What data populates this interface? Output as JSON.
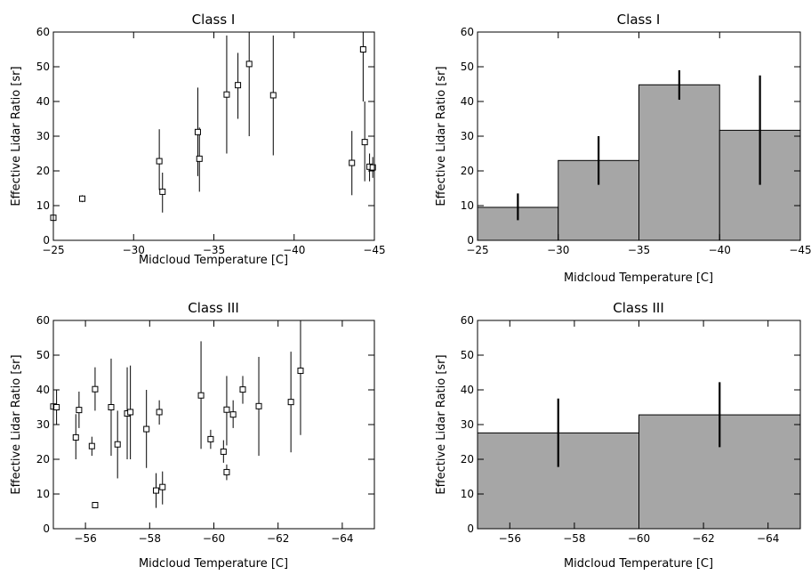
{
  "chart_data": [
    {
      "type": "scatter",
      "title": "Class I",
      "xlabel": "Midcloud Temperature [C]",
      "ylabel": "Effective Lidar Ratio [sr]",
      "xlim": [
        -25,
        -45
      ],
      "ylim": [
        0,
        60
      ],
      "xticks": [
        -25,
        -30,
        -35,
        -40,
        -45
      ],
      "yticks": [
        0,
        10,
        20,
        30,
        40,
        50,
        60
      ],
      "grid": false,
      "marker": "open-square",
      "points": [
        {
          "x": -25.0,
          "y": 6.5,
          "ylo": 5.5,
          "yhi": 7.5
        },
        {
          "x": -26.8,
          "y": 12.0,
          "ylo": 11.0,
          "yhi": 13.0
        },
        {
          "x": -31.6,
          "y": 22.8,
          "ylo": 14.5,
          "yhi": 32.0
        },
        {
          "x": -31.8,
          "y": 14.0,
          "ylo": 8.0,
          "yhi": 19.5
        },
        {
          "x": -34.0,
          "y": 31.2,
          "ylo": 18.5,
          "yhi": 44.0
        },
        {
          "x": -34.1,
          "y": 23.5,
          "ylo": 14.0,
          "yhi": 32.5
        },
        {
          "x": -35.8,
          "y": 42.0,
          "ylo": 25.0,
          "yhi": 59.0
        },
        {
          "x": -36.5,
          "y": 44.7,
          "ylo": 35.0,
          "yhi": 54.0
        },
        {
          "x": -37.2,
          "y": 50.8,
          "ylo": 30.0,
          "yhi": 60.0
        },
        {
          "x": -38.7,
          "y": 41.8,
          "ylo": 24.5,
          "yhi": 59.0
        },
        {
          "x": -43.6,
          "y": 22.3,
          "ylo": 13.0,
          "yhi": 31.5
        },
        {
          "x": -44.3,
          "y": 55.0,
          "ylo": 40.0,
          "yhi": 60.0
        },
        {
          "x": -44.4,
          "y": 28.3,
          "ylo": 17.0,
          "yhi": 40.0
        },
        {
          "x": -44.7,
          "y": 21.2,
          "ylo": 17.0,
          "yhi": 25.0
        },
        {
          "x": -44.9,
          "y": 21.0,
          "ylo": 18.0,
          "yhi": 24.0
        }
      ]
    },
    {
      "type": "bar",
      "title": "Class I",
      "xlabel": "Midcloud Temperature [C]",
      "ylabel": "Effective Lidar Ratio [sr]",
      "xlim": [
        -25,
        -45
      ],
      "ylim": [
        0,
        60
      ],
      "xticks": [
        -25,
        -30,
        -35,
        -40,
        -45
      ],
      "yticks": [
        0,
        10,
        20,
        30,
        40,
        50,
        60
      ],
      "grid": false,
      "bar_color": "#a6a6a6",
      "bars": [
        {
          "x0": -25,
          "x1": -30,
          "value": 9.5,
          "err_center": -27.5,
          "ylo": 5.8,
          "yhi": 13.5
        },
        {
          "x0": -30,
          "x1": -35,
          "value": 23.0,
          "err_center": -32.5,
          "ylo": 16.0,
          "yhi": 30.0
        },
        {
          "x0": -35,
          "x1": -40,
          "value": 44.8,
          "err_center": -37.5,
          "ylo": 40.5,
          "yhi": 49.0
        },
        {
          "x0": -40,
          "x1": -45,
          "value": 31.7,
          "err_center": -42.5,
          "ylo": 16.0,
          "yhi": 47.5
        }
      ]
    },
    {
      "type": "scatter",
      "title": "Class III",
      "xlabel": "Midcloud Temperature [C]",
      "ylabel": "Effective Lidar Ratio [sr]",
      "xlim": [
        -55,
        -65
      ],
      "ylim": [
        0,
        60
      ],
      "xticks": [
        -56,
        -58,
        -60,
        -62,
        -64
      ],
      "yticks": [
        0,
        10,
        20,
        30,
        40,
        50,
        60
      ],
      "grid": false,
      "marker": "open-square",
      "points": [
        {
          "x": -55.0,
          "y": 35.2,
          "ylo": 28.0,
          "yhi": 42.0
        },
        {
          "x": -55.1,
          "y": 35.0,
          "ylo": 30.0,
          "yhi": 40.0
        },
        {
          "x": -55.7,
          "y": 26.3,
          "ylo": 20.0,
          "yhi": 33.0
        },
        {
          "x": -55.8,
          "y": 34.2,
          "ylo": 29.0,
          "yhi": 39.5
        },
        {
          "x": -56.2,
          "y": 23.8,
          "ylo": 21.0,
          "yhi": 26.5
        },
        {
          "x": -56.3,
          "y": 40.2,
          "ylo": 34.0,
          "yhi": 46.5
        },
        {
          "x": -56.3,
          "y": 6.8,
          "ylo": 6.0,
          "yhi": 7.6
        },
        {
          "x": -56.8,
          "y": 35.0,
          "ylo": 21.0,
          "yhi": 49.0
        },
        {
          "x": -57.0,
          "y": 24.3,
          "ylo": 14.5,
          "yhi": 34.0
        },
        {
          "x": -57.3,
          "y": 33.2,
          "ylo": 20.0,
          "yhi": 46.5
        },
        {
          "x": -57.4,
          "y": 33.6,
          "ylo": 20.0,
          "yhi": 47.0
        },
        {
          "x": -57.9,
          "y": 28.7,
          "ylo": 17.5,
          "yhi": 40.0
        },
        {
          "x": -58.2,
          "y": 11.0,
          "ylo": 6.0,
          "yhi": 16.0
        },
        {
          "x": -58.3,
          "y": 33.6,
          "ylo": 30.0,
          "yhi": 37.0
        },
        {
          "x": -58.4,
          "y": 12.0,
          "ylo": 7.0,
          "yhi": 16.5
        },
        {
          "x": -59.6,
          "y": 38.4,
          "ylo": 23.0,
          "yhi": 54.0
        },
        {
          "x": -59.9,
          "y": 25.8,
          "ylo": 23.0,
          "yhi": 28.5
        },
        {
          "x": -60.3,
          "y": 22.2,
          "ylo": 19.0,
          "yhi": 25.5
        },
        {
          "x": -60.4,
          "y": 34.3,
          "ylo": 24.0,
          "yhi": 44.0
        },
        {
          "x": -60.4,
          "y": 16.3,
          "ylo": 14.0,
          "yhi": 18.5
        },
        {
          "x": -60.6,
          "y": 32.9,
          "ylo": 29.0,
          "yhi": 37.0
        },
        {
          "x": -60.9,
          "y": 40.1,
          "ylo": 36.0,
          "yhi": 44.0
        },
        {
          "x": -61.4,
          "y": 35.3,
          "ylo": 21.0,
          "yhi": 49.5
        },
        {
          "x": -62.4,
          "y": 36.5,
          "ylo": 22.0,
          "yhi": 51.0
        },
        {
          "x": -62.7,
          "y": 45.5,
          "ylo": 27.0,
          "yhi": 60.0
        }
      ]
    },
    {
      "type": "bar",
      "title": "Class III",
      "xlabel": "Midcloud Temperature [C]",
      "ylabel": "Effective Lidar Ratio [sr]",
      "xlim": [
        -55,
        -65
      ],
      "ylim": [
        0,
        60
      ],
      "xticks": [
        -56,
        -58,
        -60,
        -62,
        -64
      ],
      "yticks": [
        0,
        10,
        20,
        30,
        40,
        50,
        60
      ],
      "grid": false,
      "bar_color": "#a6a6a6",
      "bars": [
        {
          "x0": -55,
          "x1": -60,
          "value": 27.6,
          "err_center": -57.5,
          "ylo": 17.8,
          "yhi": 37.5
        },
        {
          "x0": -60,
          "x1": -65,
          "value": 32.8,
          "err_center": -62.5,
          "ylo": 23.5,
          "yhi": 42.2
        }
      ]
    }
  ]
}
